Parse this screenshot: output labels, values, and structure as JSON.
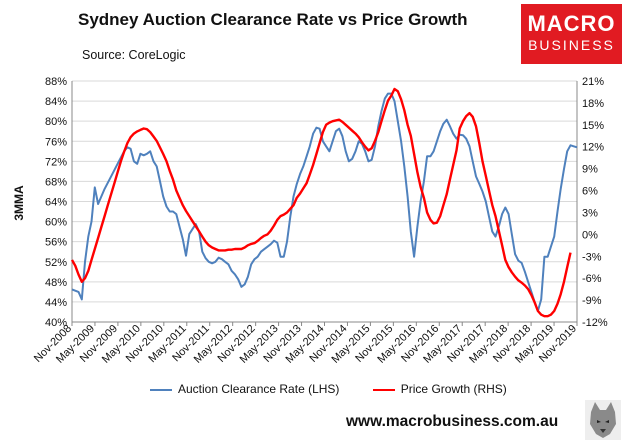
{
  "chart_data": {
    "type": "line",
    "title": "Sydney Auction Clearance Rate vs Price Growth",
    "subtitle": "Source: CoreLogic",
    "ylabel": "3MMA",
    "x_labels": [
      "Nov-2008",
      "May-2009",
      "Nov-2009",
      "May-2010",
      "Nov-2010",
      "May-2011",
      "Nov-2011",
      "May-2012",
      "Nov-2012",
      "May-2013",
      "Nov-2013",
      "May-2014",
      "Nov-2014",
      "May-2015",
      "Nov-2015",
      "May-2016",
      "Nov-2016",
      "May-2017",
      "Nov-2017",
      "May-2018",
      "Nov-2018",
      "May-2019",
      "Nov-2019"
    ],
    "y_left": {
      "min": 40,
      "max": 88,
      "step": 4,
      "tick_labels": [
        "40%",
        "44%",
        "48%",
        "52%",
        "56%",
        "60%",
        "64%",
        "68%",
        "72%",
        "76%",
        "80%",
        "84%",
        "88%"
      ]
    },
    "y_right": {
      "min": -12,
      "max": 21,
      "step": 3,
      "tick_labels": [
        "-12%",
        "-9%",
        "-6%",
        "-3%",
        "0%",
        "3%",
        "6%",
        "9%",
        "12%",
        "15%",
        "18%",
        "21%"
      ]
    },
    "grid": "horizontal",
    "legend_position": "bottom",
    "series": [
      {
        "name": "Auction Clearance Rate (LHS)",
        "axis": "left",
        "color": "#4f81bd",
        "points": [
          [
            0,
            46.5
          ],
          [
            2,
            46
          ],
          [
            3,
            44.5
          ],
          [
            4,
            52
          ],
          [
            5,
            57
          ],
          [
            6,
            60
          ],
          [
            7,
            66.8
          ],
          [
            8,
            63.5
          ],
          [
            10,
            66.5
          ],
          [
            12,
            69
          ],
          [
            14,
            71.5
          ],
          [
            16,
            74
          ],
          [
            17,
            74.8
          ],
          [
            18,
            74.5
          ],
          [
            19,
            72
          ],
          [
            20,
            71.5
          ],
          [
            21,
            73.5
          ],
          [
            22,
            73.2
          ],
          [
            23,
            73.5
          ],
          [
            24,
            74
          ],
          [
            25,
            72
          ],
          [
            26,
            71
          ],
          [
            27,
            68
          ],
          [
            28,
            65
          ],
          [
            29,
            63
          ],
          [
            30,
            62
          ],
          [
            31,
            62
          ],
          [
            32,
            61.5
          ],
          [
            33,
            59
          ],
          [
            34,
            56.5
          ],
          [
            35,
            53.2
          ],
          [
            36,
            57.5
          ],
          [
            37,
            58.5
          ],
          [
            38,
            59.5
          ],
          [
            39,
            58
          ],
          [
            40,
            54
          ],
          [
            41,
            52.7
          ],
          [
            42,
            52
          ],
          [
            43,
            51.7
          ],
          [
            44,
            52
          ],
          [
            45,
            52.8
          ],
          [
            46,
            52.5
          ],
          [
            47,
            52
          ],
          [
            48,
            51.5
          ],
          [
            49,
            50.2
          ],
          [
            50,
            49.5
          ],
          [
            51,
            48.5
          ],
          [
            52,
            47
          ],
          [
            53,
            47.5
          ],
          [
            54,
            49
          ],
          [
            55,
            51.5
          ],
          [
            56,
            52.5
          ],
          [
            57,
            53
          ],
          [
            58,
            54
          ],
          [
            59,
            54.5
          ],
          [
            60,
            55
          ],
          [
            61,
            55.5
          ],
          [
            62,
            56.2
          ],
          [
            63,
            55.8
          ],
          [
            64,
            53
          ],
          [
            65,
            53
          ],
          [
            66,
            56
          ],
          [
            67,
            61
          ],
          [
            68,
            65
          ],
          [
            69,
            67.5
          ],
          [
            70,
            69.5
          ],
          [
            71,
            71
          ],
          [
            72,
            73
          ],
          [
            73,
            75
          ],
          [
            74,
            77.5
          ],
          [
            75,
            78.7
          ],
          [
            76,
            78.5
          ],
          [
            77,
            76
          ],
          [
            78,
            75
          ],
          [
            79,
            74
          ],
          [
            80,
            76
          ],
          [
            81,
            78
          ],
          [
            82,
            78.5
          ],
          [
            83,
            77
          ],
          [
            84,
            74
          ],
          [
            85,
            72
          ],
          [
            86,
            72.5
          ],
          [
            87,
            74
          ],
          [
            88,
            76
          ],
          [
            89,
            75.5
          ],
          [
            90,
            74
          ],
          [
            91,
            72
          ],
          [
            92,
            72.3
          ],
          [
            93,
            75
          ],
          [
            94,
            79
          ],
          [
            95,
            82
          ],
          [
            96,
            84.5
          ],
          [
            97,
            85.5
          ],
          [
            98,
            85.5
          ],
          [
            99,
            84
          ],
          [
            100,
            80
          ],
          [
            101,
            76
          ],
          [
            102,
            71
          ],
          [
            103,
            65
          ],
          [
            104,
            58
          ],
          [
            105,
            53
          ],
          [
            106,
            59
          ],
          [
            107,
            64
          ],
          [
            108,
            68
          ],
          [
            109,
            73
          ],
          [
            110,
            73
          ],
          [
            111,
            74
          ],
          [
            112,
            76
          ],
          [
            113,
            78
          ],
          [
            114,
            79.5
          ],
          [
            115,
            80.3
          ],
          [
            116,
            79
          ],
          [
            117,
            77.5
          ],
          [
            118,
            76.5
          ],
          [
            119,
            77.3
          ],
          [
            120,
            77.2
          ],
          [
            121,
            76.5
          ],
          [
            122,
            75
          ],
          [
            123,
            72
          ],
          [
            124,
            69
          ],
          [
            125,
            67.5
          ],
          [
            126,
            66
          ],
          [
            127,
            64
          ],
          [
            128,
            61
          ],
          [
            129,
            58
          ],
          [
            130,
            57
          ],
          [
            131,
            59
          ],
          [
            132,
            61.5
          ],
          [
            133,
            62.8
          ],
          [
            134,
            61.5
          ],
          [
            135,
            57.5
          ],
          [
            136,
            53.5
          ],
          [
            137,
            52.2
          ],
          [
            138,
            51.8
          ],
          [
            139,
            50
          ],
          [
            140,
            48
          ],
          [
            141,
            46
          ],
          [
            142,
            44
          ],
          [
            143,
            42.2
          ],
          [
            144,
            44.5
          ],
          [
            145,
            53
          ],
          [
            146,
            53
          ],
          [
            147,
            55
          ],
          [
            148,
            57
          ],
          [
            149,
            62
          ],
          [
            150,
            66.5
          ],
          [
            151,
            70.5
          ],
          [
            152,
            74
          ],
          [
            153,
            75.2
          ],
          [
            154,
            75
          ],
          [
            155,
            74.8
          ]
        ]
      },
      {
        "name": "Price Growth (RHS)",
        "axis": "right",
        "color": "#ff0000",
        "points": [
          [
            0,
            -3.5
          ],
          [
            1,
            -4.3
          ],
          [
            2,
            -5.5
          ],
          [
            3,
            -6.5
          ],
          [
            4,
            -6
          ],
          [
            5,
            -5
          ],
          [
            6,
            -3.5
          ],
          [
            7,
            -2
          ],
          [
            8,
            -0.5
          ],
          [
            9,
            1
          ],
          [
            10,
            2.5
          ],
          [
            11,
            4
          ],
          [
            12,
            5.5
          ],
          [
            13,
            7
          ],
          [
            14,
            8.5
          ],
          [
            15,
            10
          ],
          [
            16,
            11.3
          ],
          [
            17,
            12.5
          ],
          [
            18,
            13.3
          ],
          [
            19,
            13.8
          ],
          [
            20,
            14.1
          ],
          [
            21,
            14.3
          ],
          [
            22,
            14.5
          ],
          [
            23,
            14.4
          ],
          [
            24,
            14
          ],
          [
            25,
            13.4
          ],
          [
            26,
            12.8
          ],
          [
            27,
            11.9
          ],
          [
            28,
            11
          ],
          [
            29,
            10
          ],
          [
            30,
            8.7
          ],
          [
            31,
            7.5
          ],
          [
            32,
            6
          ],
          [
            33,
            5
          ],
          [
            34,
            4
          ],
          [
            35,
            3.2
          ],
          [
            36,
            2.5
          ],
          [
            37,
            1.8
          ],
          [
            38,
            1.1
          ],
          [
            39,
            0.4
          ],
          [
            40,
            -0.3
          ],
          [
            41,
            -1
          ],
          [
            42,
            -1.5
          ],
          [
            43,
            -1.8
          ],
          [
            44,
            -2
          ],
          [
            45,
            -2.2
          ],
          [
            46,
            -2.2
          ],
          [
            47,
            -2.2
          ],
          [
            48,
            -2.1
          ],
          [
            49,
            -2.1
          ],
          [
            50,
            -2
          ],
          [
            51,
            -2
          ],
          [
            52,
            -2
          ],
          [
            53,
            -1.8
          ],
          [
            54,
            -1.5
          ],
          [
            55,
            -1.3
          ],
          [
            56,
            -1.2
          ],
          [
            57,
            -0.9
          ],
          [
            58,
            -0.5
          ],
          [
            59,
            -0.2
          ],
          [
            60,
            0
          ],
          [
            61,
            0.5
          ],
          [
            62,
            1.2
          ],
          [
            63,
            2
          ],
          [
            64,
            2.5
          ],
          [
            65,
            2.7
          ],
          [
            66,
            3
          ],
          [
            67,
            3.5
          ],
          [
            68,
            4
          ],
          [
            69,
            5
          ],
          [
            70,
            5.6
          ],
          [
            71,
            6.3
          ],
          [
            72,
            7
          ],
          [
            73,
            8.2
          ],
          [
            74,
            9.5
          ],
          [
            75,
            11
          ],
          [
            76,
            12.5
          ],
          [
            77,
            14
          ],
          [
            78,
            15
          ],
          [
            79,
            15.3
          ],
          [
            80,
            15.5
          ],
          [
            81,
            15.6
          ],
          [
            82,
            15.7
          ],
          [
            83,
            15.4
          ],
          [
            84,
            15
          ],
          [
            85,
            14.6
          ],
          [
            86,
            14.2
          ],
          [
            87,
            13.8
          ],
          [
            88,
            13.3
          ],
          [
            89,
            12.6
          ],
          [
            90,
            12
          ],
          [
            91,
            11.5
          ],
          [
            92,
            11.8
          ],
          [
            93,
            12.8
          ],
          [
            94,
            14
          ],
          [
            95,
            15.5
          ],
          [
            96,
            17
          ],
          [
            97,
            18.3
          ],
          [
            98,
            19
          ],
          [
            99,
            19.9
          ],
          [
            100,
            19.6
          ],
          [
            101,
            18.5
          ],
          [
            102,
            17
          ],
          [
            103,
            15
          ],
          [
            104,
            13.5
          ],
          [
            105,
            11
          ],
          [
            106,
            8.5
          ],
          [
            107,
            6.5
          ],
          [
            108,
            5
          ],
          [
            109,
            3
          ],
          [
            110,
            2
          ],
          [
            111,
            1.5
          ],
          [
            112,
            1.6
          ],
          [
            113,
            2.5
          ],
          [
            114,
            4
          ],
          [
            115,
            5.5
          ],
          [
            116,
            7.5
          ],
          [
            117,
            9.5
          ],
          [
            118,
            11.5
          ],
          [
            119,
            14.5
          ],
          [
            120,
            15.5
          ],
          [
            121,
            16.2
          ],
          [
            122,
            16.6
          ],
          [
            123,
            16.1
          ],
          [
            124,
            14.8
          ],
          [
            125,
            12.5
          ],
          [
            126,
            10
          ],
          [
            127,
            8
          ],
          [
            128,
            6
          ],
          [
            129,
            4
          ],
          [
            130,
            2.5
          ],
          [
            131,
            0.5
          ],
          [
            132,
            -1.5
          ],
          [
            133,
            -3.5
          ],
          [
            134,
            -4.5
          ],
          [
            135,
            -5.2
          ],
          [
            136,
            -5.8
          ],
          [
            137,
            -6.3
          ],
          [
            138,
            -6.6
          ],
          [
            139,
            -7
          ],
          [
            140,
            -7.5
          ],
          [
            141,
            -8.3
          ],
          [
            142,
            -9.3
          ],
          [
            143,
            -10.5
          ],
          [
            144,
            -11
          ],
          [
            145,
            -11.2
          ],
          [
            146,
            -11.2
          ],
          [
            147,
            -11
          ],
          [
            148,
            -10.5
          ],
          [
            149,
            -9.5
          ],
          [
            150,
            -8.2
          ],
          [
            151,
            -6.5
          ],
          [
            152,
            -4.5
          ],
          [
            153,
            -2.5
          ]
        ]
      }
    ]
  },
  "brand": {
    "line1": "MACRO",
    "line2": "BUSINESS",
    "color": "#e11b22",
    "website": "www.macrobusiness.com.au",
    "mascot_icon": "wolf-icon"
  }
}
